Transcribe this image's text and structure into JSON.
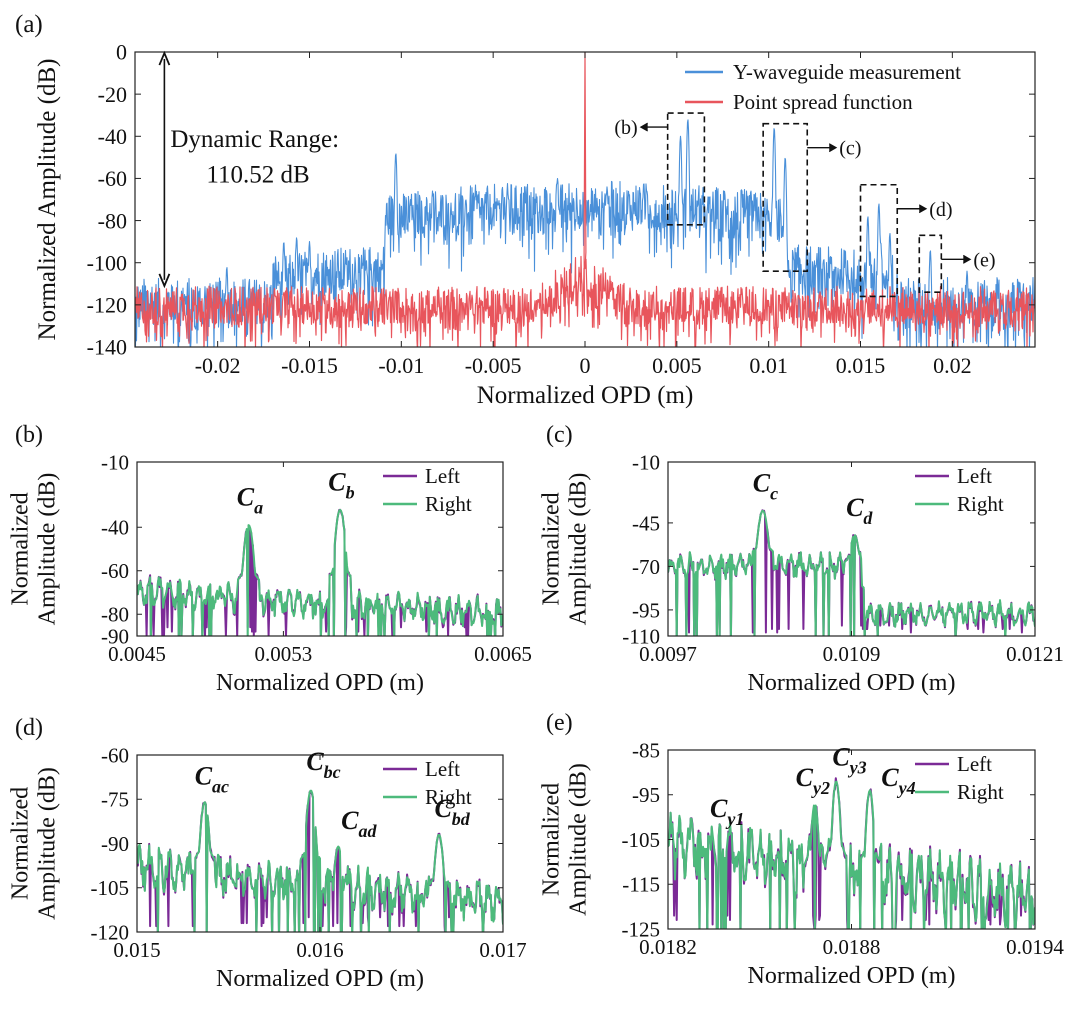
{
  "colors": {
    "left": "#7B2A96",
    "right": "#4DBA7C",
    "measure": "#4A90D9",
    "psf": "#E8555C"
  },
  "panels": [
    {
      "id": "a",
      "label": "(a)",
      "xlabel": "Normalized OPD (m)",
      "ylabel": [
        "Normalized Amplitude (dB)"
      ],
      "xlim": [
        -0.0245,
        0.0245
      ],
      "ylim": [
        -140,
        0
      ],
      "xticks": [
        -0.02,
        -0.015,
        -0.01,
        -0.005,
        0,
        0.005,
        0.01,
        0.015,
        0.02
      ],
      "xtick_labels": [
        "-0.02",
        "-0.015",
        "-0.01",
        "-0.005",
        "0",
        "0.005",
        "0.01",
        "0.015",
        "0.02"
      ],
      "yticks": [
        0,
        -20,
        -40,
        -60,
        -80,
        -100,
        -120,
        -140
      ],
      "ytick_labels": [
        "0",
        "-20",
        "-40",
        "-60",
        "-80",
        "-100",
        "-120",
        "-140"
      ],
      "legend": [
        "Y-waveguide measurement",
        "Point spread function"
      ],
      "annotation": {
        "line1": "Dynamic Range:",
        "line2": "110.52 dB",
        "from_db": -0.5,
        "to_db": -111
      },
      "zoom_boxes": [
        {
          "label": "(b)",
          "x0": 0.0045,
          "x1": 0.0065,
          "y0": -82,
          "y1": -29,
          "side": "left"
        },
        {
          "label": "(c)",
          "x0": 0.0097,
          "x1": 0.0121,
          "y0": -104,
          "y1": -34,
          "side": "right"
        },
        {
          "label": "(d)",
          "x0": 0.015,
          "x1": 0.017,
          "y0": -116,
          "y1": -63,
          "side": "right"
        },
        {
          "label": "(e)",
          "x0": 0.0182,
          "x1": 0.0194,
          "y0": -114,
          "y1": -87,
          "side": "right"
        }
      ]
    },
    {
      "id": "b",
      "label": "(b)",
      "xlabel": "Normalized OPD (m)",
      "ylabel": [
        "Normalized",
        "Amplitude (dB)"
      ],
      "xlim": [
        0.0045,
        0.0065
      ],
      "ylim": [
        -90,
        -10
      ],
      "xticks": [
        0.0045,
        0.0053,
        0.0065
      ],
      "xtick_labels": [
        "0.0045",
        "0.0053",
        "0.0065"
      ],
      "yticks": [
        -10,
        -40,
        -60,
        -80,
        -90
      ],
      "ytick_labels": [
        "-10",
        "-40",
        "-60",
        "-80",
        "-90"
      ],
      "legend": [
        "Left",
        "Right"
      ],
      "peaks": [
        {
          "name": "C",
          "sub": "a",
          "x": 0.00511,
          "y": -39,
          "lx": 0.0051,
          "ly": -30
        },
        {
          "name": "C",
          "sub": "b",
          "x": 0.00561,
          "y": -32,
          "lx": 0.0056,
          "ly": -23
        }
      ],
      "floor": [
        -70,
        -80
      ],
      "left_dips": [
        -90,
        -90,
        -88,
        -86
      ]
    },
    {
      "id": "c",
      "label": "(c)",
      "xlabel": "Normalized OPD (m)",
      "ylabel": [
        "Normalized",
        "Amplitude (dB)"
      ],
      "xlim": [
        0.0097,
        0.0121
      ],
      "ylim": [
        -110,
        -10
      ],
      "xticks": [
        0.0097,
        0.0109,
        0.0121
      ],
      "xtick_labels": [
        "0.0097",
        "0.0109",
        "0.0121"
      ],
      "yticks": [
        -10,
        -45,
        -70,
        -95,
        -110
      ],
      "ytick_labels": [
        "-10",
        "-45",
        "-70",
        "-95",
        "-110"
      ],
      "legend": [
        "Left",
        "Right"
      ],
      "peaks": [
        {
          "name": "C",
          "sub": "c",
          "x": 0.01032,
          "y": -38,
          "lx": 0.01032,
          "ly": -27
        },
        {
          "name": "C",
          "sub": "d",
          "x": 0.01092,
          "y": -52,
          "lx": 0.01093,
          "ly": -41
        }
      ],
      "floor": [
        -68,
        -97
      ],
      "left_dips": [
        -108,
        -106,
        -104
      ]
    },
    {
      "id": "d",
      "label": "(d)",
      "xlabel": "Normalized OPD (m)",
      "ylabel": [
        "Normalized",
        "Amplitude (dB)"
      ],
      "xlim": [
        0.015,
        0.017
      ],
      "ylim": [
        -120,
        -60
      ],
      "xticks": [
        0.015,
        0.016,
        0.017
      ],
      "xtick_labels": [
        "0.015",
        "0.016",
        "0.017"
      ],
      "yticks": [
        -60,
        -75,
        -90,
        -105,
        -120
      ],
      "ytick_labels": [
        "-60",
        "-75",
        "-90",
        "-105",
        "-120"
      ],
      "legend": [
        "Left",
        "Right"
      ],
      "peaks": [
        {
          "name": "C",
          "sub": "ac",
          "x": 0.01537,
          "y": -76,
          "lx": 0.01537,
          "ly": -70
        },
        {
          "name": "C",
          "sub": "bc",
          "x": 0.01595,
          "y": -72,
          "lx": 0.01598,
          "ly": -65
        },
        {
          "name": "C",
          "sub": "ad",
          "x": 0.0161,
          "y": -91,
          "lx": 0.01617,
          "ly": -85
        },
        {
          "name": "C",
          "sub": "bd",
          "x": 0.01665,
          "y": -87,
          "lx": 0.01668,
          "ly": -81
        }
      ],
      "floor": [
        -98,
        -110
      ],
      "left_dips": [
        -118,
        -117,
        -115
      ]
    },
    {
      "id": "e",
      "label": "(e)",
      "xlabel": "Normalized OPD (m)",
      "ylabel": [
        "Normalized",
        "Amplitude (dB)"
      ],
      "xlim": [
        0.0182,
        0.0194
      ],
      "ylim": [
        -125,
        -85
      ],
      "xticks": [
        0.0182,
        0.0188,
        0.0194
      ],
      "xtick_labels": [
        "0.0182",
        "0.0188",
        "0.0194"
      ],
      "yticks": [
        -85,
        -95,
        -105,
        -115,
        -125
      ],
      "ytick_labels": [
        "-85",
        "-95",
        "-105",
        "-115",
        "-125"
      ],
      "legend": [
        "Left",
        "Right"
      ],
      "peaks": [
        {
          "name": "C",
          "sub": "y1",
          "x": 0.0184,
          "y": -104,
          "lx": 0.01837,
          "ly": -100
        },
        {
          "name": "C",
          "sub": "y2",
          "x": 0.01868,
          "y": -97,
          "lx": 0.01865,
          "ly": -93
        },
        {
          "name": "C",
          "sub": "y3",
          "x": 0.01875,
          "y": -92,
          "lx": 0.01877,
          "ly": -88.5
        },
        {
          "name": "C",
          "sub": "y4",
          "x": 0.01886,
          "y": -94,
          "lx": 0.01893,
          "ly": -93
        }
      ],
      "floor": [
        -106,
        -118
      ],
      "left_dips": [
        -124,
        -123,
        -122
      ]
    }
  ],
  "chart_data": [
    {
      "type": "line",
      "title": "(a)",
      "xlabel": "Normalized OPD (m)",
      "ylabel": "Normalized Amplitude (dB)",
      "xlim": [
        -0.0245,
        0.0245
      ],
      "ylim": [
        -140,
        0
      ],
      "series": [
        {
          "name": "Y-waveguide measurement",
          "description_points": {
            "x": [
              -0.0245,
              -0.017,
              -0.011,
              -0.0105,
              0,
              0.0052,
              0.0056,
              0.0103,
              0.0109,
              0.0112,
              0.0154,
              0.016,
              0.0188,
              0.0245
            ],
            "y": [
              -118,
              -105,
              -100,
              -80,
              -70,
              -40,
              -32,
              -36,
              -52,
              -88,
              -76,
              -72,
              -92,
              -120
            ]
          }
        },
        {
          "name": "Point spread function",
          "description_points": {
            "x": [
              -0.0245,
              -0.002,
              -0.0005,
              0,
              0.0005,
              0.002,
              0.0245
            ],
            "y": [
              -120,
              -118,
              -102,
              0,
              -102,
              -118,
              -120
            ]
          }
        }
      ]
    },
    {
      "type": "line",
      "title": "(b)",
      "xlim": [
        0.0045,
        0.0065
      ],
      "ylim": [
        -90,
        -10
      ],
      "series": [
        {
          "name": "Left",
          "peaks_x": [
            0.00511,
            0.00561
          ],
          "peaks_y": [
            -39,
            -32
          ],
          "baseline": [
            -70,
            -80
          ]
        },
        {
          "name": "Right",
          "peaks_x": [
            0.00511,
            0.00561
          ],
          "peaks_y": [
            -39,
            -32
          ],
          "baseline": [
            -70,
            -80
          ]
        }
      ]
    },
    {
      "type": "line",
      "title": "(c)",
      "xlim": [
        0.0097,
        0.0121
      ],
      "ylim": [
        -110,
        -10
      ],
      "series": [
        {
          "name": "Left",
          "peaks_x": [
            0.01032,
            0.01092
          ],
          "peaks_y": [
            -38,
            -52
          ],
          "baseline": [
            -68,
            -97
          ]
        },
        {
          "name": "Right",
          "peaks_x": [
            0.01032,
            0.01092
          ],
          "peaks_y": [
            -38,
            -52
          ],
          "baseline": [
            -68,
            -97
          ]
        }
      ]
    },
    {
      "type": "line",
      "title": "(d)",
      "xlim": [
        0.015,
        0.017
      ],
      "ylim": [
        -120,
        -60
      ],
      "series": [
        {
          "name": "Left",
          "peaks_x": [
            0.01537,
            0.01595,
            0.0161,
            0.01665
          ],
          "peaks_y": [
            -76,
            -72,
            -91,
            -87
          ],
          "baseline": [
            -98,
            -110
          ]
        },
        {
          "name": "Right",
          "peaks_x": [
            0.01537,
            0.01595,
            0.0161,
            0.01665
          ],
          "peaks_y": [
            -76,
            -72,
            -91,
            -87
          ],
          "baseline": [
            -98,
            -110
          ]
        }
      ]
    },
    {
      "type": "line",
      "title": "(e)",
      "xlim": [
        0.0182,
        0.0194
      ],
      "ylim": [
        -125,
        -85
      ],
      "series": [
        {
          "name": "Left",
          "peaks_x": [
            0.0184,
            0.01868,
            0.01875,
            0.01886
          ],
          "peaks_y": [
            -104,
            -97,
            -92,
            -94
          ],
          "baseline": [
            -106,
            -118
          ]
        },
        {
          "name": "Right",
          "peaks_x": [
            0.0184,
            0.01868,
            0.01875,
            0.01886
          ],
          "peaks_y": [
            -104,
            -97,
            -92,
            -94
          ],
          "baseline": [
            -106,
            -118
          ]
        }
      ]
    }
  ]
}
